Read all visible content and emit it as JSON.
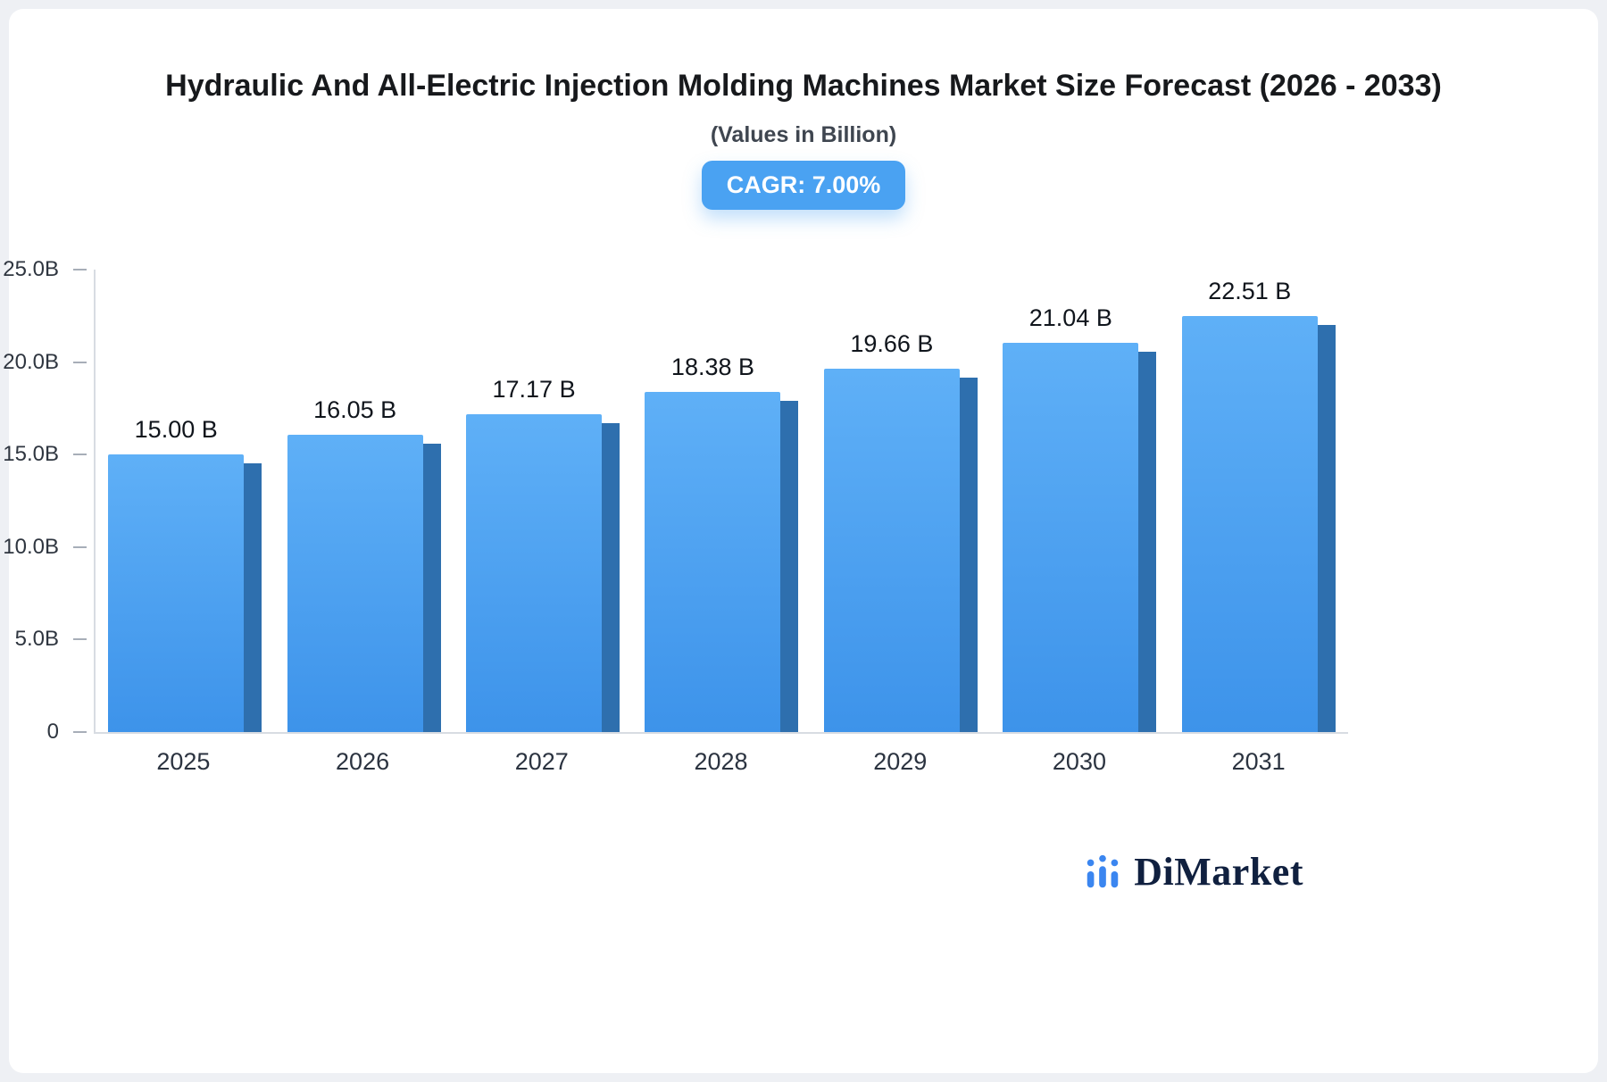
{
  "header": {
    "title": "Hydraulic And All-Electric Injection Molding Machines Market Size Forecast (2026 - 2033)",
    "subtitle": "(Values in Billion)",
    "cagr_badge": "CAGR: 7.00%"
  },
  "brand": {
    "name": "DiMarket"
  },
  "chart_data": {
    "type": "bar",
    "title": "Hydraulic And All-Electric Injection Molding Machines Market Size Forecast (2026 - 2033)",
    "subtitle": "(Values in Billion)",
    "cagr_label": "CAGR: 7.00%",
    "categories": [
      "2025",
      "2026",
      "2027",
      "2028",
      "2029",
      "2030",
      "2031"
    ],
    "values": [
      15.0,
      16.05,
      17.17,
      18.38,
      19.66,
      21.04,
      22.51
    ],
    "bar_labels": [
      "15.00 B",
      "16.05 B",
      "17.17 B",
      "18.38 B",
      "19.66 B",
      "21.04 B",
      "22.51 B"
    ],
    "ylim": [
      0,
      25
    ],
    "yticks": [
      {
        "label": "25.0B",
        "value": 25
      },
      {
        "label": "20.0B",
        "value": 20
      },
      {
        "label": "15.0B",
        "value": 15
      },
      {
        "label": "10.0B",
        "value": 10
      },
      {
        "label": "5.0B",
        "value": 5
      },
      {
        "label": "0",
        "value": 0
      }
    ],
    "grid": false,
    "legend": "none",
    "colors": {
      "bar_top": "#5fb0f7",
      "bar_bottom": "#3d93ea",
      "bar_side": "#2e6fae",
      "badge_bg": "#4aa2f2",
      "axis": "#d8dce2",
      "brand_icon": "#3b86f0"
    }
  }
}
